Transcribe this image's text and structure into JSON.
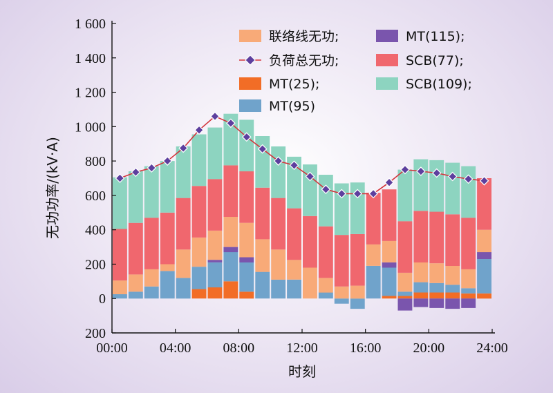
{
  "chart_data": {
    "type": "bar",
    "stacked": true,
    "xlabel": "时刻",
    "ylabel": "无功功率/(kV·A)",
    "ylim": [
      -200,
      1600
    ],
    "xlim": [
      0,
      24
    ],
    "yticks": [
      -200,
      0,
      200,
      400,
      600,
      800,
      1000,
      1200,
      1400,
      1600
    ],
    "ytick_labels": [
      "200",
      "0",
      "200",
      "400",
      "600",
      "800",
      "1 000",
      "1 200",
      "1 400",
      "1 600"
    ],
    "xticks": [
      0,
      4,
      8,
      12,
      16,
      20,
      24
    ],
    "xtick_labels": [
      "00:00",
      "04:00",
      "08:00",
      "12:00",
      "16:00",
      "20:00",
      "24:00"
    ],
    "legend_position": "top-right",
    "hours": [
      0.5,
      1.5,
      2.5,
      3.5,
      4.5,
      5.5,
      6.5,
      7.5,
      8.5,
      9.5,
      10.5,
      11.5,
      12.5,
      13.5,
      14.5,
      15.5,
      16.5,
      17.5,
      18.5,
      19.5,
      20.5,
      21.5,
      22.5,
      23.5
    ],
    "series": [
      {
        "name": "MT(25);",
        "color": "#f26d26",
        "values": [
          0,
          0,
          0,
          0,
          0,
          55,
          65,
          100,
          40,
          0,
          0,
          0,
          0,
          0,
          0,
          0,
          0,
          15,
          15,
          35,
          35,
          35,
          30,
          30
        ]
      },
      {
        "name": "MT(95)",
        "color": "#70a3cb",
        "values": [
          25,
          40,
          70,
          160,
          120,
          130,
          145,
          170,
          170,
          155,
          110,
          110,
          0,
          35,
          -30,
          -60,
          190,
          165,
          25,
          60,
          55,
          45,
          30,
          200
        ]
      },
      {
        "name": "MT(115);",
        "color": "#7a55ad",
        "values": [
          0,
          0,
          0,
          0,
          0,
          0,
          15,
          30,
          30,
          0,
          0,
          0,
          0,
          0,
          0,
          0,
          0,
          30,
          -70,
          -50,
          -55,
          -60,
          -55,
          40
        ]
      },
      {
        "name": "联络线无功;",
        "color": "#f8aa78",
        "values": [
          80,
          100,
          100,
          40,
          165,
          170,
          170,
          175,
          200,
          190,
          175,
          115,
          180,
          85,
          70,
          75,
          125,
          125,
          110,
          115,
          115,
          110,
          110,
          130
        ]
      },
      {
        "name": "SCB(77);",
        "color": "#f0676e",
        "values": [
          300,
          300,
          300,
          300,
          300,
          300,
          300,
          300,
          300,
          300,
          300,
          300,
          300,
          300,
          300,
          300,
          300,
          300,
          300,
          300,
          300,
          300,
          300,
          300
        ]
      },
      {
        "name": "SCB(109);",
        "color": "#8dd4c0",
        "values": [
          300,
          300,
          300,
          300,
          300,
          300,
          300,
          300,
          300,
          300,
          300,
          300,
          300,
          300,
          300,
          300,
          0,
          0,
          300,
          300,
          300,
          300,
          300,
          0
        ]
      },
      {
        "name": "负荷总无功;",
        "type": "line",
        "color": "#d3343b",
        "marker_color": "#5d3f9e",
        "values": [
          700,
          735,
          760,
          800,
          875,
          980,
          1060,
          1020,
          940,
          870,
          800,
          775,
          710,
          635,
          610,
          610,
          610,
          675,
          750,
          740,
          730,
          710,
          695,
          685
        ]
      }
    ],
    "legend": [
      {
        "series": 3,
        "col": 0,
        "row": 0
      },
      {
        "series": 6,
        "col": 0,
        "row": 1
      },
      {
        "series": 0,
        "col": 0,
        "row": 2
      },
      {
        "series": 1,
        "col": 0,
        "row": 3
      },
      {
        "series": 2,
        "col": 1,
        "row": 0
      },
      {
        "series": 4,
        "col": 1,
        "row": 1
      },
      {
        "series": 5,
        "col": 1,
        "row": 2
      }
    ]
  }
}
